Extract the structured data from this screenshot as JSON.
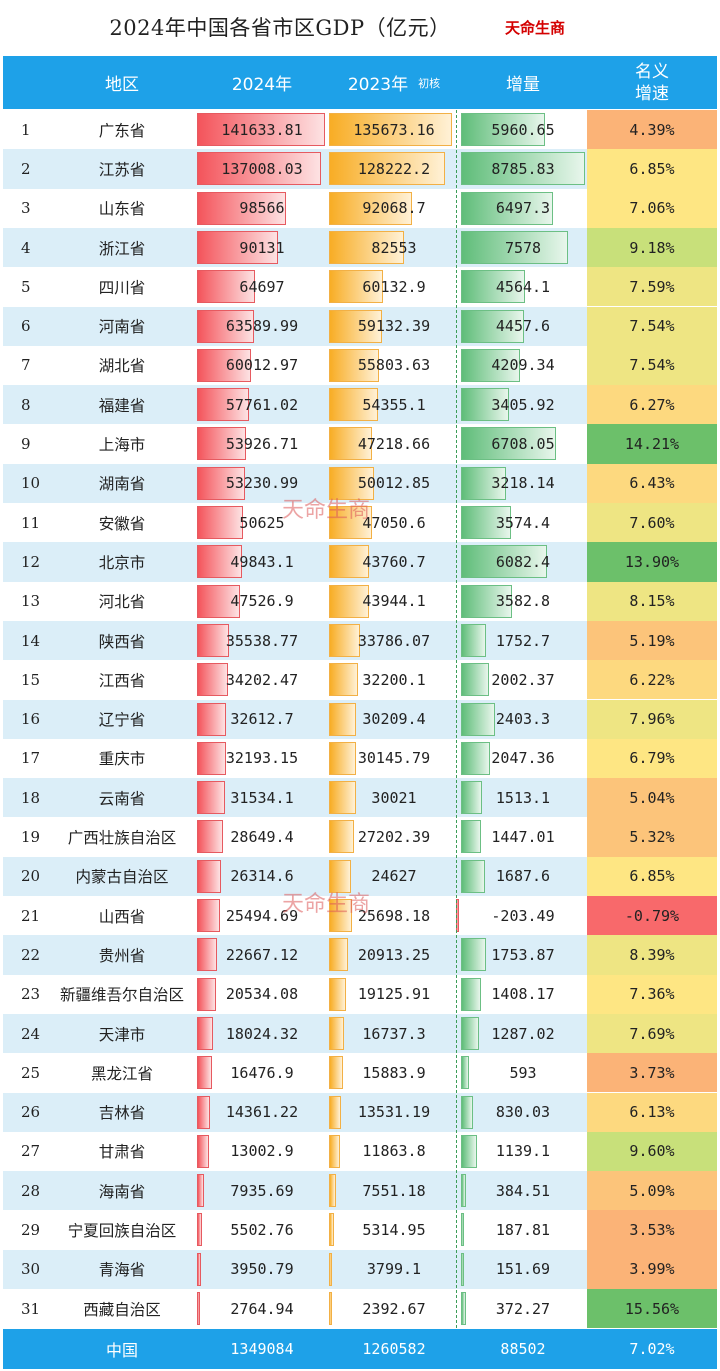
{
  "title": "2024年中国各省市区GDP（亿元）",
  "brand": "天命生商",
  "watermark": "天命生商",
  "columns": {
    "region": "地区",
    "y2024": "2024年",
    "y2023": "2023年",
    "y2023_note": "初核",
    "increase": "增量",
    "growth_line1": "名义",
    "growth_line2": "增速"
  },
  "colors": {
    "header_bg": "#1ea1e8",
    "bar_2024": "#f4545b",
    "bar_2023": "#f8ad25",
    "bar_increase": "#5fbd79",
    "row_alt": "#dbeef8",
    "growth_high": "#6cc06a",
    "growth_low": "#f8696b"
  },
  "chart_data": {
    "type": "table",
    "rows": [
      {
        "rank": "1",
        "region": "广东省",
        "y2024": "141633.81",
        "y2023": "135673.16",
        "increase": "5960.65",
        "growth": "4.39%"
      },
      {
        "rank": "2",
        "region": "江苏省",
        "y2024": "137008.03",
        "y2023": "128222.2",
        "increase": "8785.83",
        "growth": "6.85%"
      },
      {
        "rank": "3",
        "region": "山东省",
        "y2024": "98566",
        "y2023": "92068.7",
        "increase": "6497.3",
        "growth": "7.06%"
      },
      {
        "rank": "4",
        "region": "浙江省",
        "y2024": "90131",
        "y2023": "82553",
        "increase": "7578",
        "growth": "9.18%"
      },
      {
        "rank": "5",
        "region": "四川省",
        "y2024": "64697",
        "y2023": "60132.9",
        "increase": "4564.1",
        "growth": "7.59%"
      },
      {
        "rank": "6",
        "region": "河南省",
        "y2024": "63589.99",
        "y2023": "59132.39",
        "increase": "4457.6",
        "growth": "7.54%"
      },
      {
        "rank": "7",
        "region": "湖北省",
        "y2024": "60012.97",
        "y2023": "55803.63",
        "increase": "4209.34",
        "growth": "7.54%"
      },
      {
        "rank": "8",
        "region": "福建省",
        "y2024": "57761.02",
        "y2023": "54355.1",
        "increase": "3405.92",
        "growth": "6.27%"
      },
      {
        "rank": "9",
        "region": "上海市",
        "y2024": "53926.71",
        "y2023": "47218.66",
        "increase": "6708.05",
        "growth": "14.21%"
      },
      {
        "rank": "10",
        "region": "湖南省",
        "y2024": "53230.99",
        "y2023": "50012.85",
        "increase": "3218.14",
        "growth": "6.43%"
      },
      {
        "rank": "11",
        "region": "安徽省",
        "y2024": "50625",
        "y2023": "47050.6",
        "increase": "3574.4",
        "growth": "7.60%"
      },
      {
        "rank": "12",
        "region": "北京市",
        "y2024": "49843.1",
        "y2023": "43760.7",
        "increase": "6082.4",
        "growth": "13.90%"
      },
      {
        "rank": "13",
        "region": "河北省",
        "y2024": "47526.9",
        "y2023": "43944.1",
        "increase": "3582.8",
        "growth": "8.15%"
      },
      {
        "rank": "14",
        "region": "陕西省",
        "y2024": "35538.77",
        "y2023": "33786.07",
        "increase": "1752.7",
        "growth": "5.19%"
      },
      {
        "rank": "15",
        "region": "江西省",
        "y2024": "34202.47",
        "y2023": "32200.1",
        "increase": "2002.37",
        "growth": "6.22%"
      },
      {
        "rank": "16",
        "region": "辽宁省",
        "y2024": "32612.7",
        "y2023": "30209.4",
        "increase": "2403.3",
        "growth": "7.96%"
      },
      {
        "rank": "17",
        "region": "重庆市",
        "y2024": "32193.15",
        "y2023": "30145.79",
        "increase": "2047.36",
        "growth": "6.79%"
      },
      {
        "rank": "18",
        "region": "云南省",
        "y2024": "31534.1",
        "y2023": "30021",
        "increase": "1513.1",
        "growth": "5.04%"
      },
      {
        "rank": "19",
        "region": "广西壮族自治区",
        "y2024": "28649.4",
        "y2023": "27202.39",
        "increase": "1447.01",
        "growth": "5.32%"
      },
      {
        "rank": "20",
        "region": "内蒙古自治区",
        "y2024": "26314.6",
        "y2023": "24627",
        "increase": "1687.6",
        "growth": "6.85%"
      },
      {
        "rank": "21",
        "region": "山西省",
        "y2024": "25494.69",
        "y2023": "25698.18",
        "increase": "-203.49",
        "growth": "-0.79%"
      },
      {
        "rank": "22",
        "region": "贵州省",
        "y2024": "22667.12",
        "y2023": "20913.25",
        "increase": "1753.87",
        "growth": "8.39%"
      },
      {
        "rank": "23",
        "region": "新疆维吾尔自治区",
        "y2024": "20534.08",
        "y2023": "19125.91",
        "increase": "1408.17",
        "growth": "7.36%"
      },
      {
        "rank": "24",
        "region": "天津市",
        "y2024": "18024.32",
        "y2023": "16737.3",
        "increase": "1287.02",
        "growth": "7.69%"
      },
      {
        "rank": "25",
        "region": "黑龙江省",
        "y2024": "16476.9",
        "y2023": "15883.9",
        "increase": "593",
        "growth": "3.73%"
      },
      {
        "rank": "26",
        "region": "吉林省",
        "y2024": "14361.22",
        "y2023": "13531.19",
        "increase": "830.03",
        "growth": "6.13%"
      },
      {
        "rank": "27",
        "region": "甘肃省",
        "y2024": "13002.9",
        "y2023": "11863.8",
        "increase": "1139.1",
        "growth": "9.60%"
      },
      {
        "rank": "28",
        "region": "海南省",
        "y2024": "7935.69",
        "y2023": "7551.18",
        "increase": "384.51",
        "growth": "5.09%"
      },
      {
        "rank": "29",
        "region": "宁夏回族自治区",
        "y2024": "5502.76",
        "y2023": "5314.95",
        "increase": "187.81",
        "growth": "3.53%"
      },
      {
        "rank": "30",
        "region": "青海省",
        "y2024": "3950.79",
        "y2023": "3799.1",
        "increase": "151.69",
        "growth": "3.99%"
      },
      {
        "rank": "31",
        "region": "西藏自治区",
        "y2024": "2764.94",
        "y2023": "2392.67",
        "increase": "372.27",
        "growth": "15.56%"
      }
    ],
    "total": {
      "region": "中国",
      "y2024": "1349084",
      "y2023": "1260582",
      "increase": "88502",
      "growth": "7.02%"
    }
  }
}
